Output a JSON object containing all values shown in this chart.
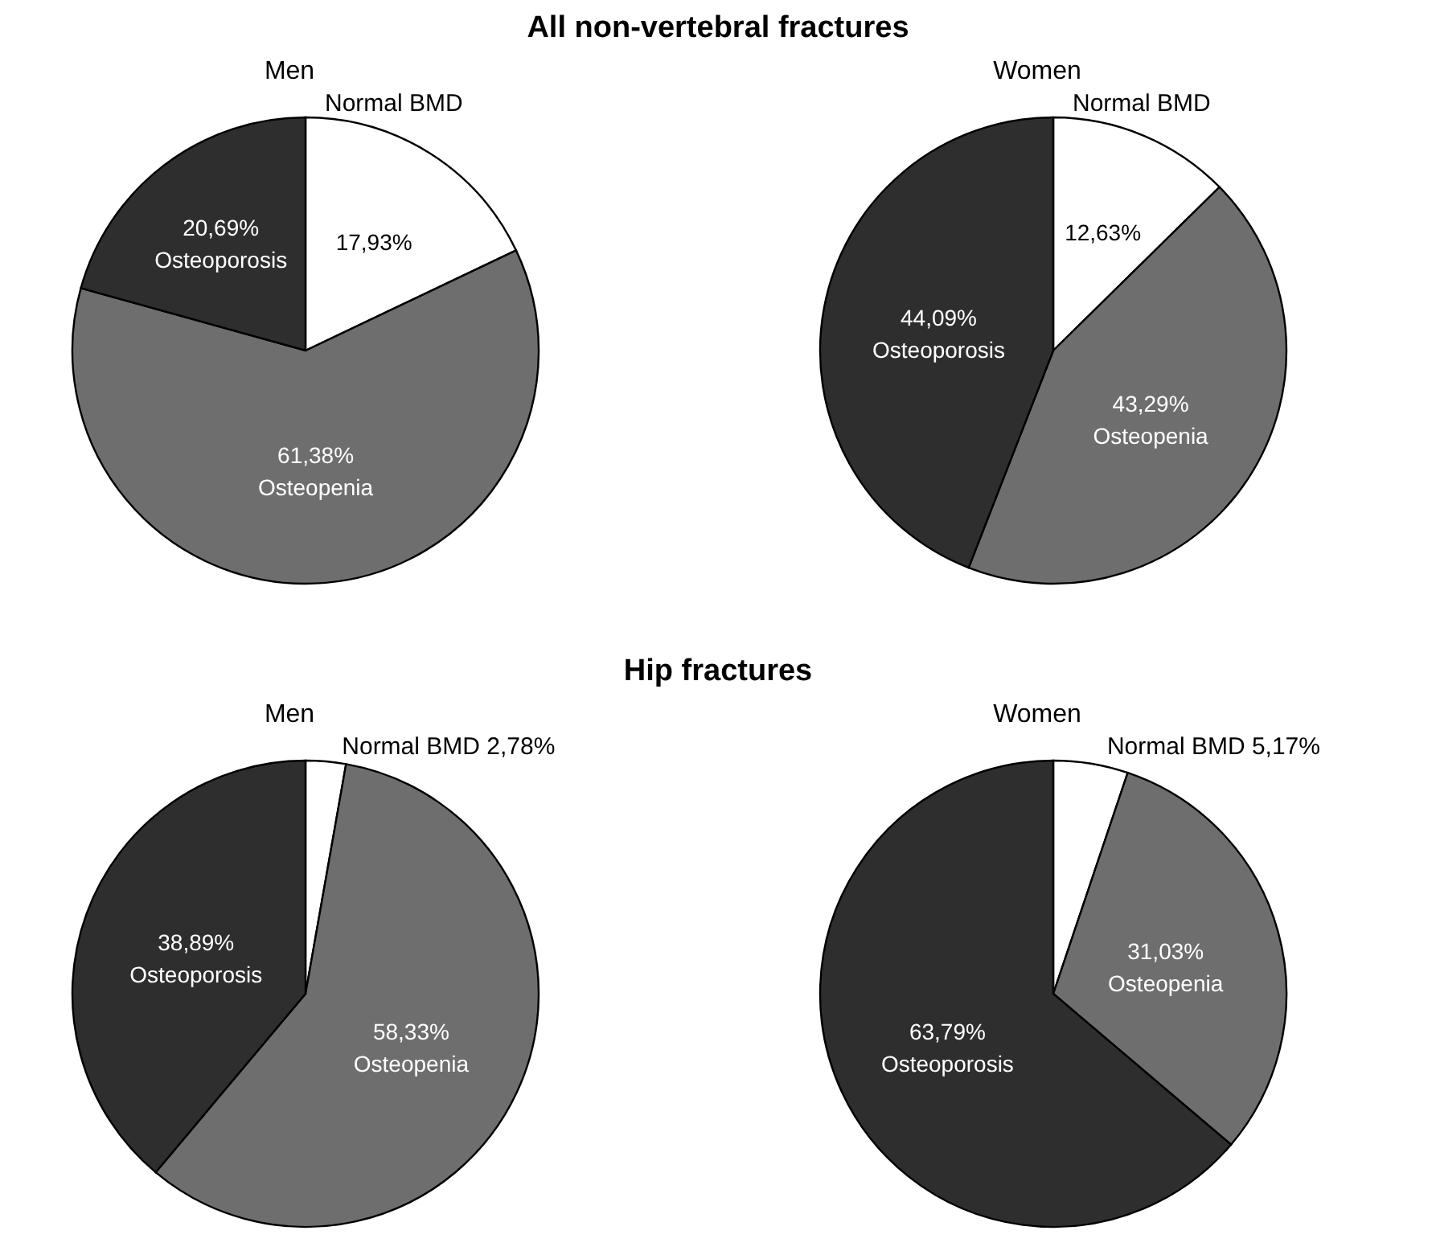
{
  "chart_data": [
    {
      "type": "pie",
      "title": "Men",
      "annotations": [
        "All non-vertebral fractures"
      ],
      "categories": [
        "Normal BMD",
        "Osteopenia",
        "Osteoporosis"
      ],
      "values": [
        17.93,
        61.38,
        20.69
      ],
      "colors": [
        "#ffffff",
        "#6e6e6e",
        "#2e2e2e"
      ],
      "value_labels": [
        "17,93%",
        "61,38%",
        "20,69%"
      ]
    },
    {
      "type": "pie",
      "title": "Women",
      "categories": [
        "Normal BMD",
        "Osteopenia",
        "Osteoporosis"
      ],
      "values": [
        12.63,
        43.29,
        44.09
      ],
      "colors": [
        "#ffffff",
        "#6e6e6e",
        "#2e2e2e"
      ],
      "value_labels": [
        "12,63%",
        "43,29%",
        "44,09%"
      ]
    },
    {
      "type": "pie",
      "title": "Men",
      "annotations": [
        "Hip fractures"
      ],
      "categories": [
        "Normal BMD",
        "Osteopenia",
        "Osteoporosis"
      ],
      "values": [
        2.78,
        58.33,
        38.89
      ],
      "colors": [
        "#ffffff",
        "#6e6e6e",
        "#2e2e2e"
      ],
      "value_labels": [
        "2,78%",
        "58,33%",
        "38,89%"
      ]
    },
    {
      "type": "pie",
      "title": "Women",
      "categories": [
        "Normal BMD",
        "Osteopenia",
        "Osteoporosis"
      ],
      "values": [
        5.17,
        31.03,
        63.79
      ],
      "colors": [
        "#ffffff",
        "#6e6e6e",
        "#2e2e2e"
      ],
      "value_labels": [
        "5,17%",
        "31,03%",
        "63,79%"
      ]
    }
  ]
}
